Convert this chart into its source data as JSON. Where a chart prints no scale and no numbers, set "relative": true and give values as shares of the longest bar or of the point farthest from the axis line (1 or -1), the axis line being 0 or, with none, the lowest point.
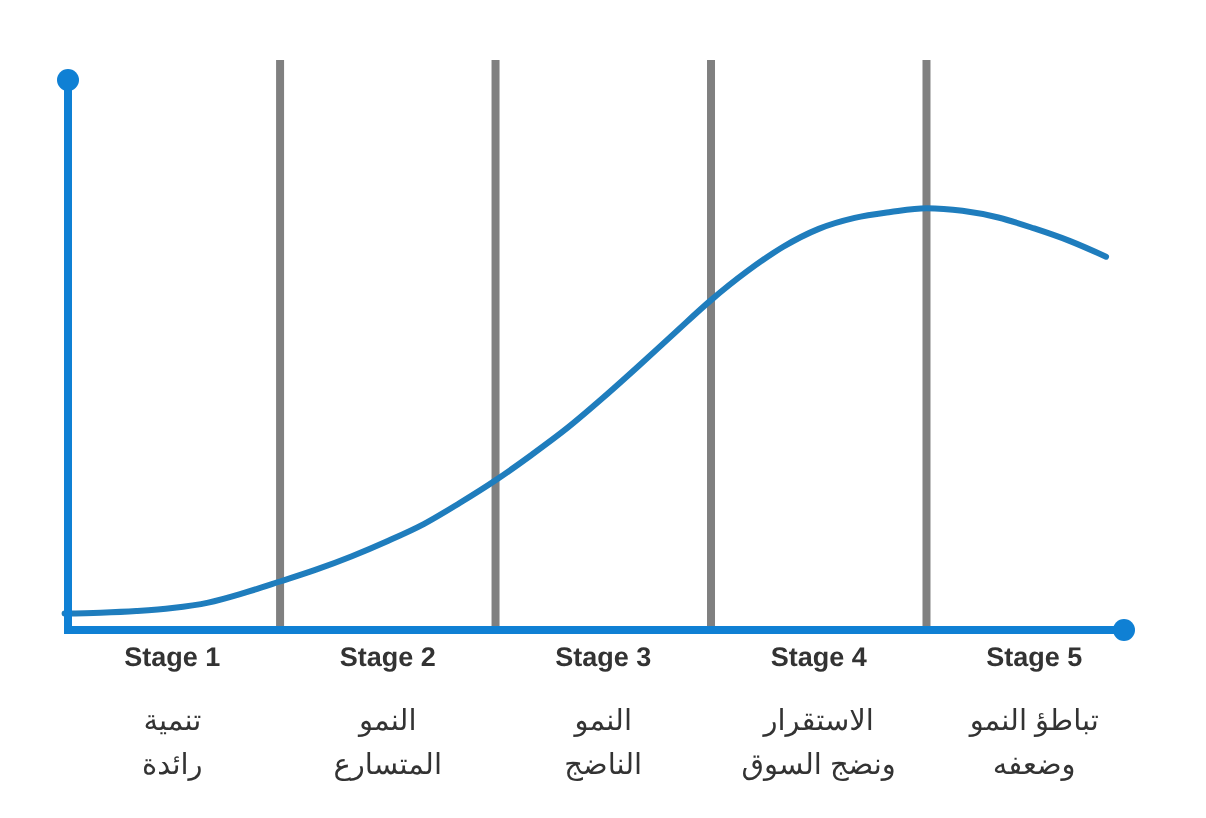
{
  "chart_data": {
    "type": "line",
    "relative": true,
    "tick_labels": "x",
    "grid": "x",
    "categories": [
      null,
      null,
      null,
      "Stage 1",
      null,
      null,
      null,
      null,
      null,
      "Stage 2",
      null,
      null,
      null,
      null,
      null,
      "Stage 3",
      null,
      null,
      null,
      null,
      null,
      "Stage 4",
      null,
      null,
      null,
      null,
      null,
      "Stage 5",
      null,
      null
    ],
    "series": [
      {
        "color": "#1f7dbd",
        "values": [
          0.039,
          0.041,
          0.045,
          0.052,
          0.065,
          0.088,
          0.115,
          0.143,
          0.175,
          0.211,
          0.251,
          0.301,
          0.355,
          0.415,
          0.479,
          0.551,
          0.627,
          0.705,
          0.782,
          0.85,
          0.908,
          0.951,
          0.977,
          0.991,
          1.0,
          0.994,
          0.978,
          0.952,
          0.922,
          0.885
        ]
      }
    ],
    "annotations": [
      "تنمية\nرائدة",
      "النمو\nالمتسارع",
      "النمو\nالناضج",
      "الاستقرار\nونضج السوق",
      "تباطؤ النمو\nوضعفه"
    ]
  }
}
